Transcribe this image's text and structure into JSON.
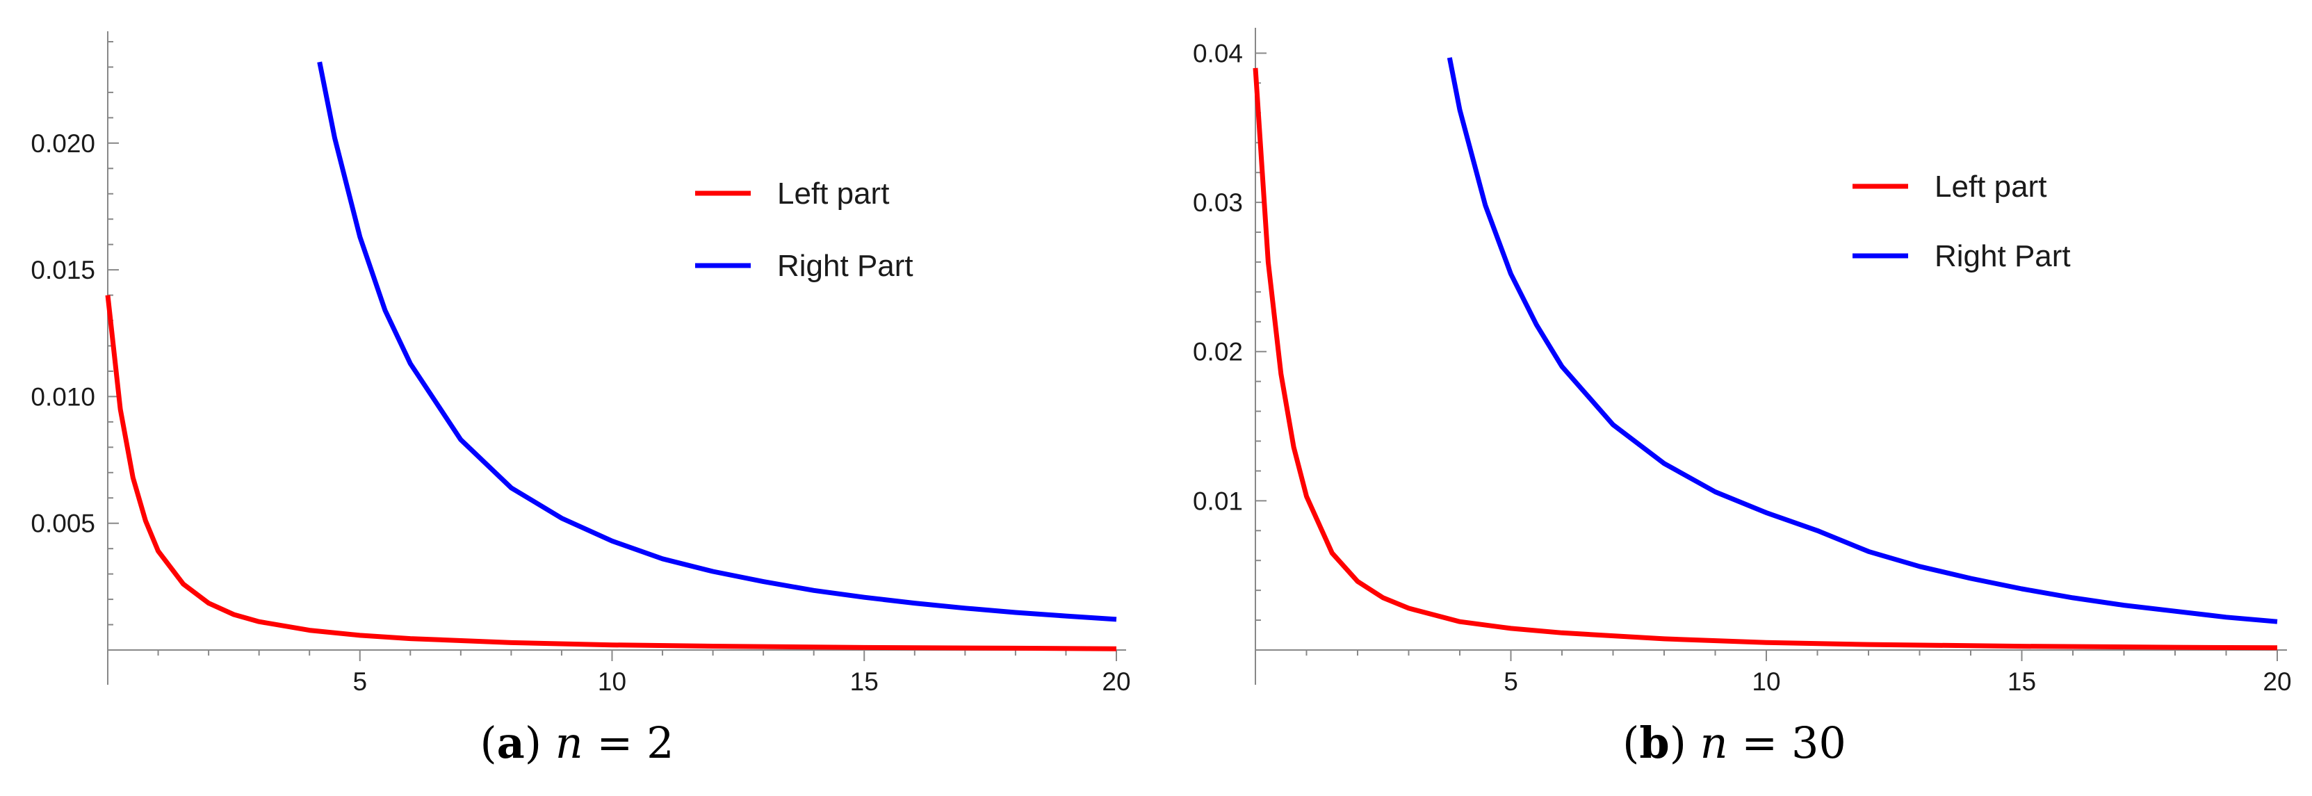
{
  "chart_data": [
    {
      "type": "line",
      "title": "",
      "xlabel": "",
      "ylabel": "",
      "xlim": [
        0,
        20
      ],
      "ylim": [
        0,
        0.024
      ],
      "x_ticks": [
        "5",
        "10",
        "15",
        "20"
      ],
      "y_ticks": [
        "0.005",
        "0.010",
        "0.015",
        "0.020"
      ],
      "legend_position": "top-right",
      "caption": {
        "tag": "a",
        "var": "n",
        "rel": "=",
        "value": "2"
      },
      "series": [
        {
          "name": "Left part",
          "color": "#ff0000",
          "x": [
            0,
            0.25,
            0.5,
            0.75,
            1,
            1.5,
            2,
            2.5,
            3,
            4,
            5,
            6,
            8,
            10,
            12,
            15,
            18,
            20
          ],
          "y": [
            0.014,
            0.0095,
            0.0068,
            0.0051,
            0.0039,
            0.0026,
            0.00185,
            0.0014,
            0.00112,
            0.00078,
            0.00058,
            0.00045,
            0.00029,
            0.0002,
            0.00015,
            0.0001,
            7e-05,
            5e-05
          ]
        },
        {
          "name": "Right Part",
          "color": "#0000ff",
          "x": [
            4.2,
            4.5,
            5,
            5.5,
            6,
            7,
            8,
            9,
            10,
            11,
            12,
            13,
            14,
            15,
            16,
            17,
            18,
            19,
            20
          ],
          "y": [
            0.0232,
            0.0202,
            0.0163,
            0.0134,
            0.0113,
            0.0083,
            0.0064,
            0.0052,
            0.0043,
            0.0036,
            0.0031,
            0.0027,
            0.00235,
            0.00208,
            0.00185,
            0.00165,
            0.00148,
            0.00134,
            0.00121
          ]
        }
      ]
    },
    {
      "type": "line",
      "title": "",
      "xlabel": "",
      "ylabel": "",
      "xlim": [
        0,
        20
      ],
      "ylim": [
        0,
        0.041
      ],
      "x_ticks": [
        "5",
        "10",
        "15",
        "20"
      ],
      "y_ticks": [
        "0.01",
        "0.02",
        "0.03",
        "0.04"
      ],
      "legend_position": "top-right",
      "caption": {
        "tag": "b",
        "var": "n",
        "rel": "=",
        "value": "30"
      },
      "series": [
        {
          "name": "Left part",
          "color": "#ff0000",
          "x": [
            0,
            0.25,
            0.5,
            0.75,
            1,
            1.5,
            2,
            2.5,
            3,
            4,
            5,
            6,
            8,
            10,
            12,
            15,
            18,
            20
          ],
          "y": [
            0.039,
            0.026,
            0.0185,
            0.0136,
            0.0103,
            0.0065,
            0.0046,
            0.0035,
            0.0028,
            0.0019,
            0.00145,
            0.00115,
            0.00075,
            0.0005,
            0.00037,
            0.00025,
            0.00018,
            0.00015
          ]
        },
        {
          "name": "Right Part",
          "color": "#0000ff",
          "x": [
            3.8,
            4,
            4.5,
            5,
            5.5,
            6,
            7,
            8,
            9,
            10,
            11,
            12,
            13,
            14,
            15,
            16,
            17,
            18,
            19,
            20
          ],
          "y": [
            0.0397,
            0.0362,
            0.0298,
            0.0252,
            0.0218,
            0.019,
            0.0151,
            0.0125,
            0.0106,
            0.0092,
            0.008,
            0.0066,
            0.0056,
            0.0048,
            0.0041,
            0.0035,
            0.003,
            0.0026,
            0.0022,
            0.0019
          ]
        }
      ]
    }
  ]
}
